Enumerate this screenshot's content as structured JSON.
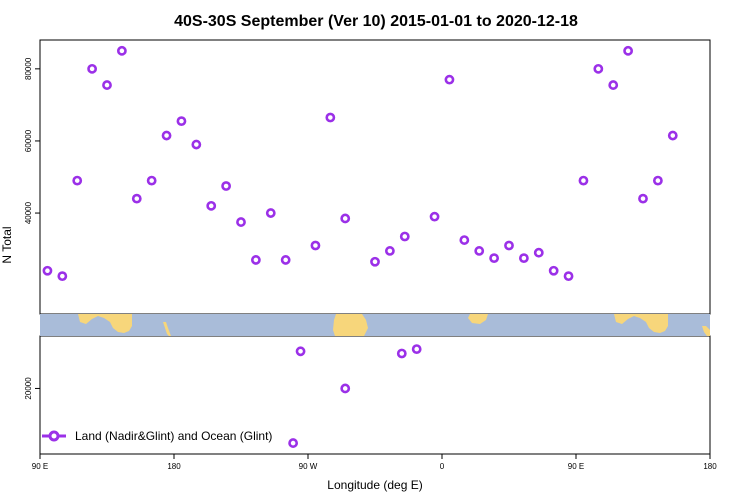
{
  "chart_data": {
    "type": "scatter",
    "title": "40S-30S September (Ver 10)   2015-01-01 to 2020-12-18",
    "xlabel": "Longitude (deg E)",
    "ylabel": "N Total",
    "x_ticks": [
      {
        "label": "90 E",
        "lon": 90
      },
      {
        "label": "180",
        "lon": 180
      },
      {
        "label": "90 W",
        "lon": 270
      },
      {
        "label": "0",
        "lon": 360
      },
      {
        "label": "90 E",
        "lon": 450
      },
      {
        "label": "180",
        "lon": 540
      }
    ],
    "xlim": [
      90,
      540
    ],
    "y_upper": {
      "ylim": [
        12000,
        88000
      ],
      "ticks": [
        {
          "label": "40000",
          "value": 40000
        },
        {
          "label": "60000",
          "value": 60000
        },
        {
          "label": "80000",
          "value": 80000
        }
      ]
    },
    "y_lower": {
      "ylim": [
        5000,
        32000
      ],
      "ticks": [
        {
          "label": "20000",
          "value": 20000
        }
      ]
    },
    "map_strip": {
      "ocean_color": "#a9bcd9",
      "land_color": "#f7d67b"
    },
    "series": [
      {
        "name": "Land (Nadir&Glint) and Ocean (Glint)",
        "color": "#9b30e8",
        "points_upper": [
          {
            "lon": 95,
            "y": 24000
          },
          {
            "lon": 105,
            "y": 22500
          },
          {
            "lon": 115,
            "y": 49000
          },
          {
            "lon": 125,
            "y": 80000
          },
          {
            "lon": 135,
            "y": 75500
          },
          {
            "lon": 145,
            "y": 85000
          },
          {
            "lon": 155,
            "y": 44000
          },
          {
            "lon": 165,
            "y": 49000
          },
          {
            "lon": 175,
            "y": 61500
          },
          {
            "lon": 185,
            "y": 65500
          },
          {
            "lon": 195,
            "y": 59000
          },
          {
            "lon": 205,
            "y": 42000
          },
          {
            "lon": 215,
            "y": 47500
          },
          {
            "lon": 225,
            "y": 37500
          },
          {
            "lon": 235,
            "y": 27000
          },
          {
            "lon": 245,
            "y": 40000
          },
          {
            "lon": 255,
            "y": 27000
          },
          {
            "lon": 275,
            "y": 31000
          },
          {
            "lon": 285,
            "y": 66500
          },
          {
            "lon": 295,
            "y": 38500
          },
          {
            "lon": 315,
            "y": 26500
          },
          {
            "lon": 325,
            "y": 29500
          },
          {
            "lon": 335,
            "y": 33500
          },
          {
            "lon": 355,
            "y": 39000
          },
          {
            "lon": 365,
            "y": 77000
          },
          {
            "lon": 375,
            "y": 32500
          },
          {
            "lon": 385,
            "y": 29500
          },
          {
            "lon": 395,
            "y": 27500
          },
          {
            "lon": 405,
            "y": 31000
          },
          {
            "lon": 415,
            "y": 27500
          },
          {
            "lon": 425,
            "y": 29000
          },
          {
            "lon": 435,
            "y": 24000
          },
          {
            "lon": 445,
            "y": 22500
          },
          {
            "lon": 455,
            "y": 49000
          },
          {
            "lon": 465,
            "y": 80000
          },
          {
            "lon": 475,
            "y": 75500
          },
          {
            "lon": 485,
            "y": 85000
          },
          {
            "lon": 495,
            "y": 44000
          },
          {
            "lon": 505,
            "y": 49000
          },
          {
            "lon": 515,
            "y": 61500
          }
        ],
        "points_lower": [
          {
            "lon": 265,
            "y": 28500
          },
          {
            "lon": 295,
            "y": 20000
          },
          {
            "lon": 333,
            "y": 28000
          },
          {
            "lon": 343,
            "y": 29000
          },
          {
            "lon": 260,
            "y": 7500
          }
        ]
      }
    ],
    "legend_position": "bottom-left"
  }
}
